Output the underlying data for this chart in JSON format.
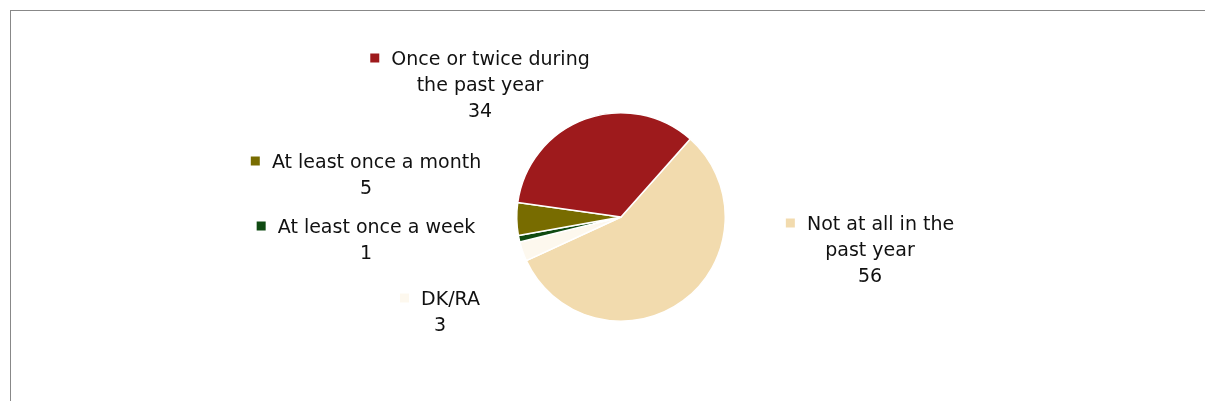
{
  "chart_data": {
    "type": "pie",
    "categories": [
      "Not at all in the past year",
      "DK/RA",
      "At least once a week",
      "At least once a month",
      "Once or twice during the past year"
    ],
    "values": [
      56,
      3,
      1,
      5,
      34
    ],
    "colors": [
      "#f2dbae",
      "#fdf8ee",
      "#0f4a12",
      "#786c00",
      "#9e1a1c"
    ],
    "data_labels": true,
    "legend": "left"
  }
}
